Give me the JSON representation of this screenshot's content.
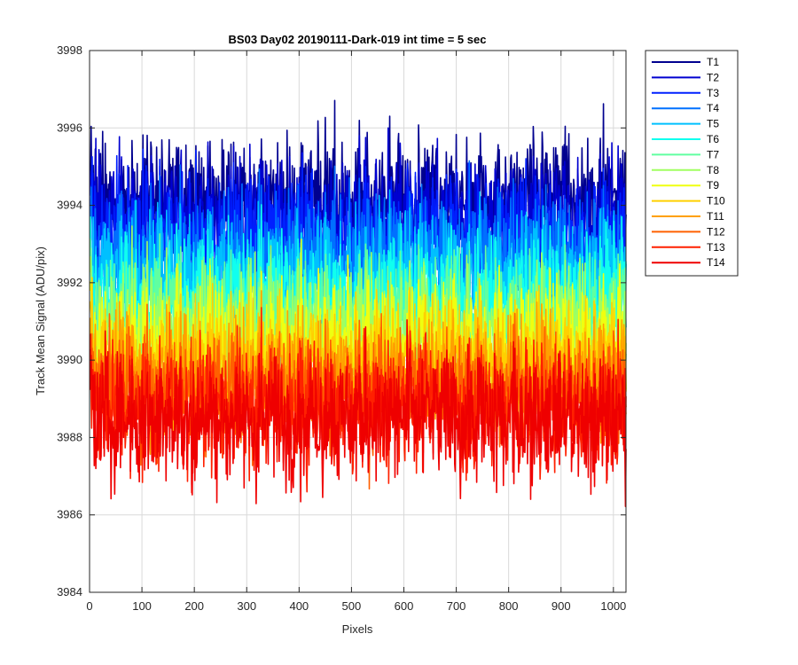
{
  "chart_data": {
    "type": "line",
    "title": "BS03 Day02 20190111-Dark-019 int time = 5 sec",
    "xlabel": "Pixels",
    "ylabel": "Track Mean Signal (ADU/pix)",
    "xlim": [
      0,
      1024
    ],
    "ylim": [
      3984,
      3998
    ],
    "xticks": [
      0,
      100,
      200,
      300,
      400,
      500,
      600,
      700,
      800,
      900,
      1000
    ],
    "yticks": [
      3984,
      3986,
      3988,
      3990,
      3992,
      3994,
      3996,
      3998
    ],
    "grid": true,
    "legend_position": "outside-top-right",
    "series": [
      {
        "name": "T1",
        "color": "#00008f",
        "mean": 3994.2,
        "noise": 0.9
      },
      {
        "name": "T2",
        "color": "#0000d0",
        "mean": 3993.7,
        "noise": 0.9
      },
      {
        "name": "T3",
        "color": "#0020ff",
        "mean": 3993.2,
        "noise": 0.9
      },
      {
        "name": "T4",
        "color": "#0070ff",
        "mean": 3992.7,
        "noise": 0.9
      },
      {
        "name": "T5",
        "color": "#00c0ff",
        "mean": 3992.2,
        "noise": 0.9
      },
      {
        "name": "T6",
        "color": "#10ffef",
        "mean": 3991.7,
        "noise": 0.9
      },
      {
        "name": "T7",
        "color": "#60ffa0",
        "mean": 3991.2,
        "noise": 0.9
      },
      {
        "name": "T8",
        "color": "#a0ff60",
        "mean": 3990.8,
        "noise": 0.9
      },
      {
        "name": "T9",
        "color": "#efff10",
        "mean": 3990.4,
        "noise": 0.9
      },
      {
        "name": "T10",
        "color": "#ffd000",
        "mean": 3990.0,
        "noise": 0.9
      },
      {
        "name": "T11",
        "color": "#ffa000",
        "mean": 3989.6,
        "noise": 0.9
      },
      {
        "name": "T12",
        "color": "#ff6000",
        "mean": 3989.2,
        "noise": 0.9
      },
      {
        "name": "T13",
        "color": "#ff2000",
        "mean": 3988.8,
        "noise": 0.9
      },
      {
        "name": "T14",
        "color": "#ef0000",
        "mean": 3988.5,
        "noise": 0.95
      }
    ]
  }
}
